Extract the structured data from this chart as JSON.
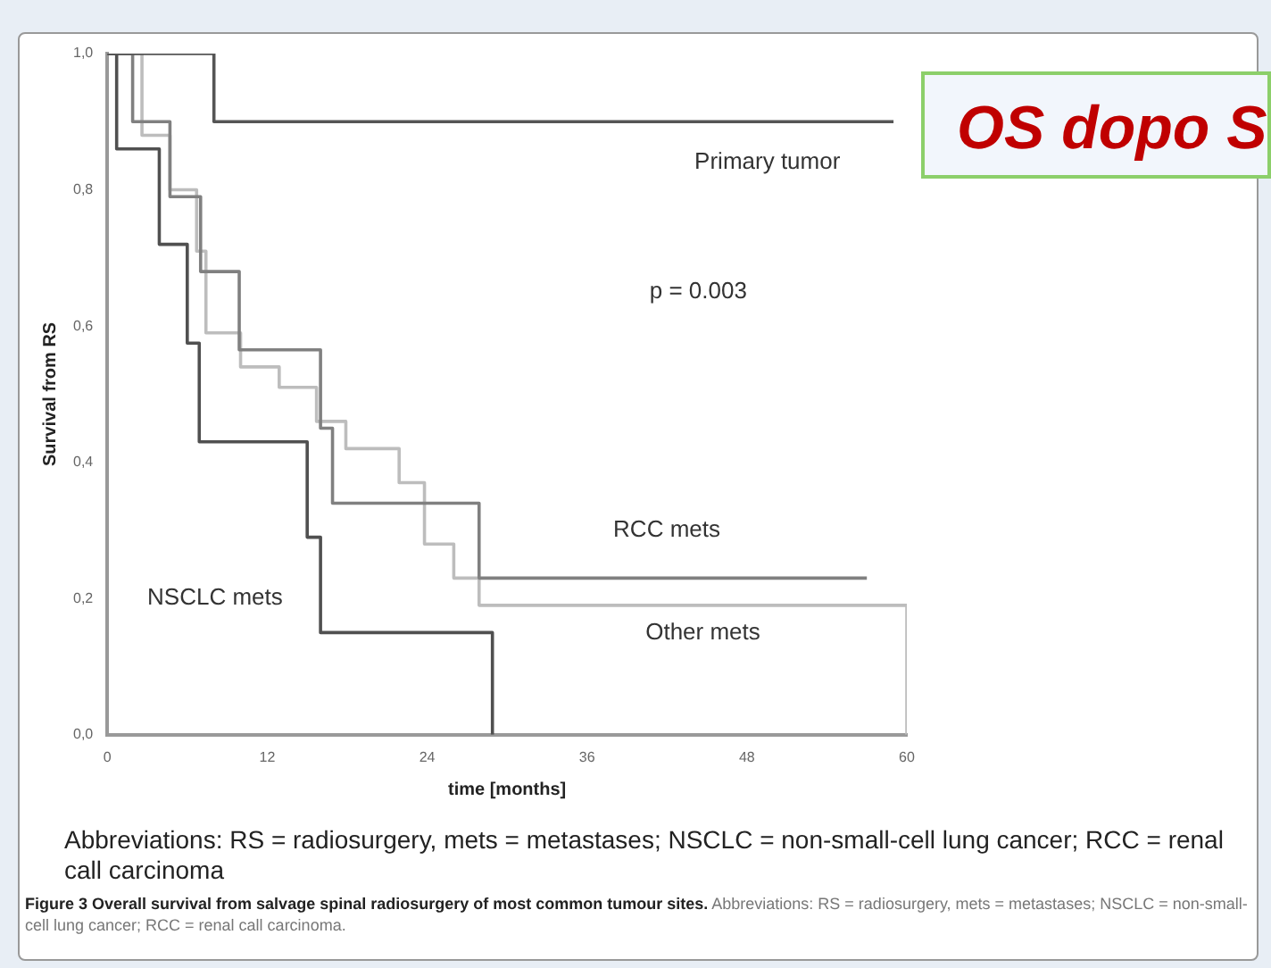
{
  "chart_data": {
    "type": "step",
    "title": "OS dopo S",
    "xlabel": "time [months]",
    "ylabel": "Survival from RS",
    "xlim": [
      0,
      60
    ],
    "xticks": [
      0,
      12,
      24,
      36,
      48,
      60
    ],
    "ylim": [
      0,
      1
    ],
    "yticks": [
      {
        "value": 0,
        "label": "0,0"
      },
      {
        "value": 0.2,
        "label": "0,2"
      },
      {
        "value": 0.4,
        "label": "0,4"
      },
      {
        "value": 0.6,
        "label": "0,6"
      },
      {
        "value": 0.8,
        "label": "0,8"
      },
      {
        "value": 1,
        "label": "1,0"
      }
    ],
    "series": [
      {
        "name": "Primary tumor",
        "color": "#555555",
        "x": [
          0,
          8,
          59
        ],
        "values": [
          1,
          0.9,
          0.9
        ]
      },
      {
        "name": "NSCLC mets",
        "color": "#505050",
        "x": [
          0,
          0.7,
          3.9,
          6,
          6.9,
          15,
          16,
          28.9
        ],
        "values": [
          1,
          0.86,
          0.72,
          0.575,
          0.43,
          0.29,
          0.15,
          0
        ]
      },
      {
        "name": "RCC mets",
        "color": "#808080",
        "x": [
          0,
          1.9,
          4.7,
          7,
          9.9,
          16,
          16.9,
          27.9,
          57
        ],
        "values": [
          1,
          0.9,
          0.79,
          0.68,
          0.565,
          0.45,
          0.34,
          0.23,
          0.23
        ]
      },
      {
        "name": "Other mets",
        "color": "#bdbdbd",
        "x": [
          0,
          2.6,
          4.7,
          6.7,
          7.4,
          10,
          12.9,
          15.7,
          17.9,
          21.9,
          23.8,
          26,
          27.9,
          60
        ],
        "values": [
          1,
          0.88,
          0.8,
          0.71,
          0.59,
          0.54,
          0.51,
          0.46,
          0.42,
          0.37,
          0.28,
          0.23,
          0.19,
          0
        ]
      }
    ],
    "annotations": [
      "p = 0.003",
      "Abbreviations: RS = radiosurgery, mets = metastases; NSCLC = non-small-cell lung cancer; RCC = renal call carcinoma",
      "Figure 3 Overall survival from salvage spinal radiosurgery of most common tumour sites.",
      "Abbreviations: RS = radiosurgery, mets = metastases; NSCLC = non-small-cell lung cancer; RCC = renal call carcinoma."
    ],
    "legend": false,
    "grid": false,
    "marker": "none",
    "line_style": "solid"
  }
}
